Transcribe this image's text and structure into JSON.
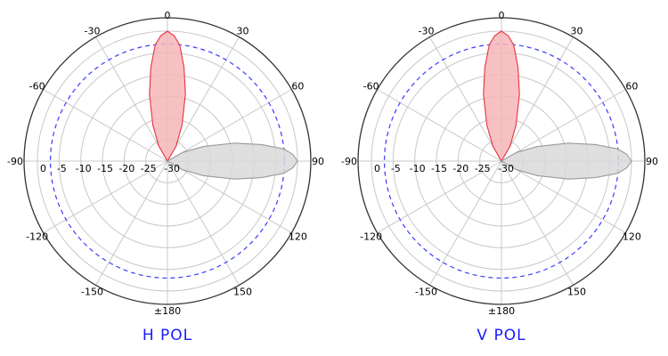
{
  "chart_data": [
    {
      "type": "polar",
      "title": "H POL",
      "angle_unit": "deg",
      "angle_ticks": [
        "0",
        "30",
        "60",
        "90",
        "120",
        "150",
        "±180",
        "-150",
        "-120",
        "-90",
        "-60",
        "-30"
      ],
      "radial_ticks": [
        "0",
        "-5",
        "-10",
        "-15",
        "-20",
        "-25",
        "-30"
      ],
      "radial_range_db": [
        -30,
        0
      ],
      "reference_circle_db": -3,
      "grid": true,
      "series": [
        {
          "color": "#e8323c",
          "fill": "#f6b6ba",
          "points": [
            [
              0,
              0
            ],
            [
              -3,
              -1
            ],
            [
              -6,
              -3
            ],
            [
              -10,
              -8
            ],
            [
              -15,
              -14
            ],
            [
              -22,
              -21
            ],
            [
              -30,
              -26
            ],
            [
              -60,
              -30
            ],
            [
              60,
              -30
            ],
            [
              30,
              -26
            ],
            [
              22,
              -21
            ],
            [
              15,
              -14
            ],
            [
              10,
              -8
            ],
            [
              6,
              -3
            ],
            [
              3,
              -1
            ]
          ]
        },
        {
          "color": "#9a9a9a",
          "fill": "#d9d9d9",
          "points": [
            [
              90,
              0
            ],
            [
              87,
              -1
            ],
            [
              84,
              -3
            ],
            [
              80,
              -8
            ],
            [
              75,
              -14
            ],
            [
              68,
              -21
            ],
            [
              60,
              -26
            ],
            [
              30,
              -30
            ],
            [
              150,
              -30
            ],
            [
              120,
              -26
            ],
            [
              112,
              -21
            ],
            [
              105,
              -14
            ],
            [
              100,
              -8
            ],
            [
              96,
              -3
            ],
            [
              93,
              -1
            ]
          ]
        }
      ]
    },
    {
      "type": "polar",
      "title": "V POL",
      "angle_unit": "deg",
      "angle_ticks": [
        "0",
        "30",
        "60",
        "90",
        "120",
        "150",
        "±180",
        "-150",
        "-120",
        "-90",
        "-60",
        "-30"
      ],
      "radial_ticks": [
        "0",
        "-5",
        "-10",
        "-15",
        "-20",
        "-25",
        "-30"
      ],
      "radial_range_db": [
        -30,
        0
      ],
      "reference_circle_db": -3,
      "grid": true,
      "series": [
        {
          "color": "#e8323c",
          "fill": "#f6b6ba",
          "points": [
            [
              0,
              0
            ],
            [
              -3,
              -1
            ],
            [
              -6,
              -3
            ],
            [
              -10,
              -8
            ],
            [
              -15,
              -14
            ],
            [
              -22,
              -21
            ],
            [
              -30,
              -26
            ],
            [
              -60,
              -30
            ],
            [
              60,
              -30
            ],
            [
              30,
              -26
            ],
            [
              22,
              -21
            ],
            [
              15,
              -14
            ],
            [
              10,
              -8
            ],
            [
              6,
              -3
            ],
            [
              3,
              -1
            ]
          ]
        },
        {
          "color": "#9a9a9a",
          "fill": "#d9d9d9",
          "points": [
            [
              90,
              0
            ],
            [
              87,
              -1
            ],
            [
              84,
              -3
            ],
            [
              80,
              -8
            ],
            [
              75,
              -14
            ],
            [
              68,
              -21
            ],
            [
              60,
              -26
            ],
            [
              30,
              -30
            ],
            [
              150,
              -30
            ],
            [
              120,
              -26
            ],
            [
              112,
              -21
            ],
            [
              105,
              -14
            ],
            [
              100,
              -8
            ],
            [
              96,
              -3
            ],
            [
              93,
              -1
            ]
          ]
        }
      ]
    }
  ]
}
